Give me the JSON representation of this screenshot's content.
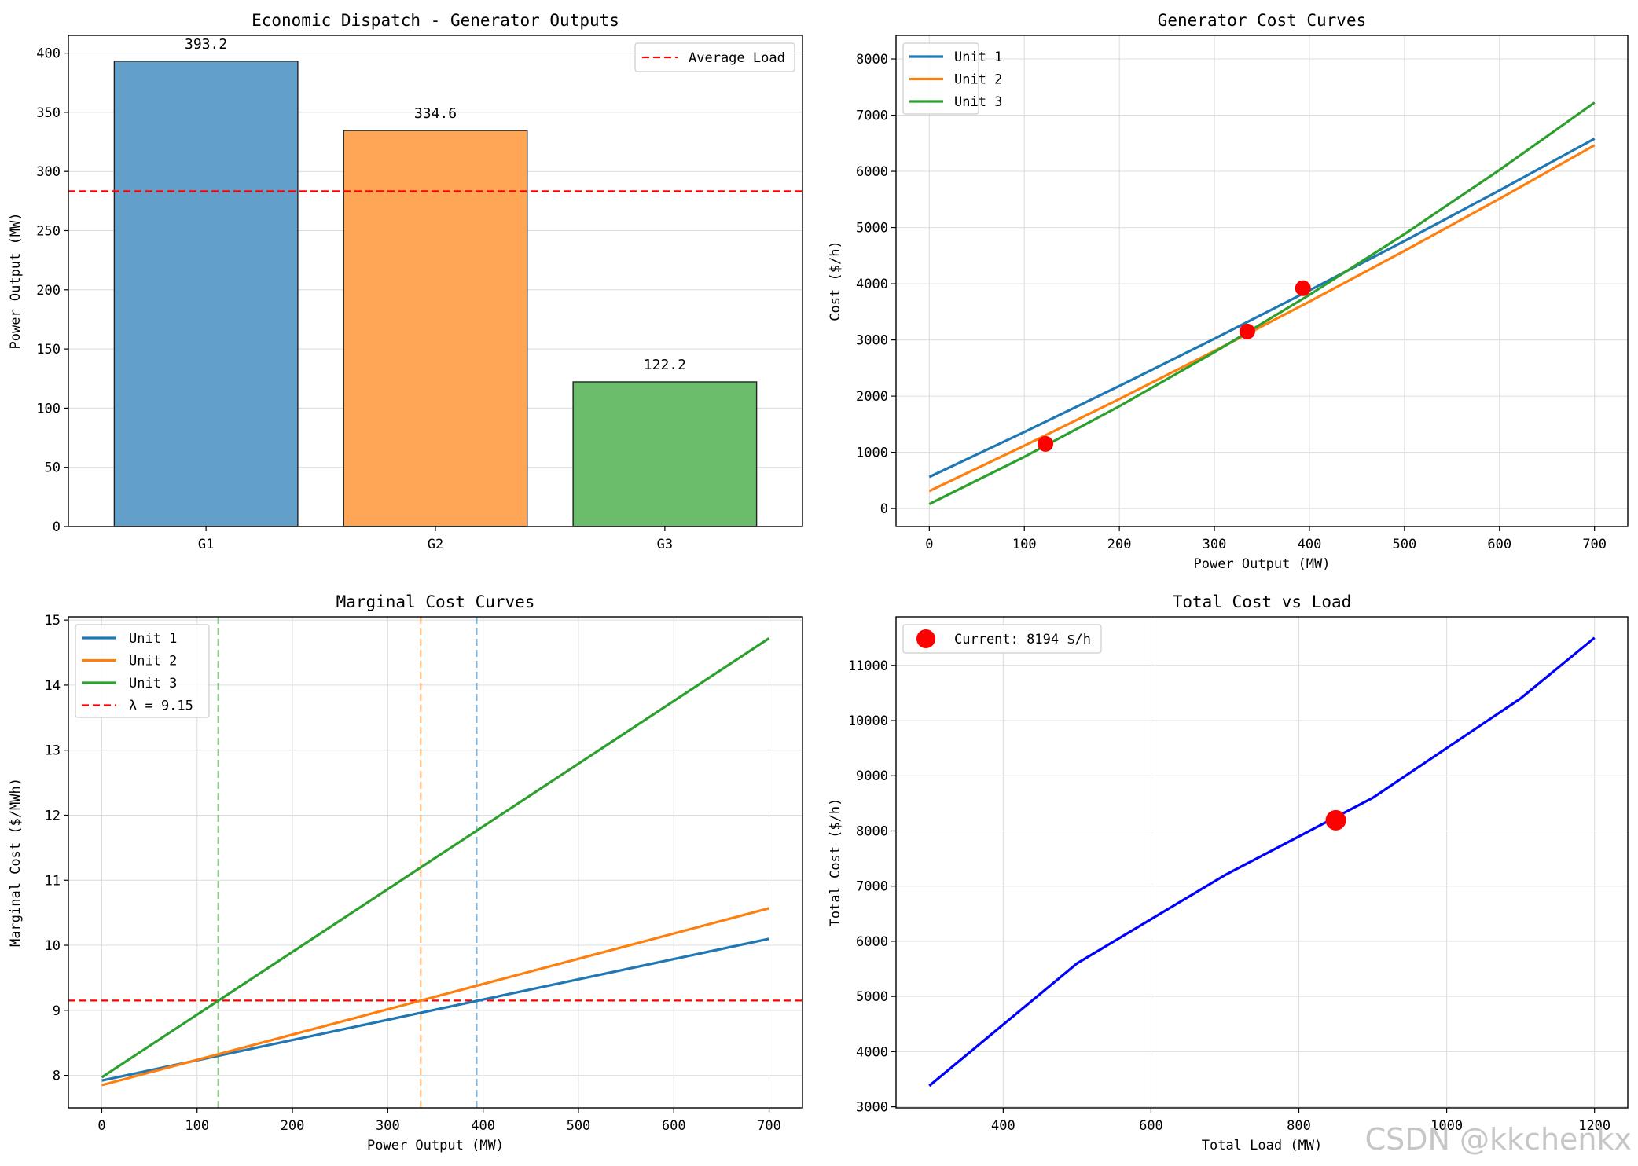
{
  "chart_data": [
    {
      "type": "bar",
      "title": "Economic Dispatch - Generator Outputs",
      "xlabel": "",
      "ylabel": "Power Output (MW)",
      "categories": [
        "G1",
        "G2",
        "G3"
      ],
      "values": [
        393.2,
        334.6,
        122.2
      ],
      "value_labels": [
        "393.2",
        "334.6",
        "122.2"
      ],
      "bar_colors": [
        "#62a0ca",
        "#ffa556",
        "#6bbc6b"
      ],
      "ylim": [
        0,
        415
      ],
      "yticks": [
        0,
        50,
        100,
        150,
        200,
        250,
        300,
        350,
        400
      ],
      "grid": true,
      "reference_line": {
        "label": "Average Load",
        "value": 283.3,
        "color": "#ff0000",
        "style": "dashed"
      },
      "legend": {
        "placement": "top-right",
        "entries": [
          "Average Load"
        ]
      }
    },
    {
      "type": "line",
      "title": "Generator Cost Curves",
      "xlabel": "Power Output (MW)",
      "ylabel": "Cost ($/h)",
      "xlim": [
        -35,
        735
      ],
      "ylim": [
        -320,
        8420
      ],
      "xticks": [
        0,
        100,
        200,
        300,
        400,
        500,
        600,
        700
      ],
      "yticks": [
        0,
        1000,
        2000,
        3000,
        4000,
        5000,
        6000,
        7000,
        8000
      ],
      "grid": true,
      "series": [
        {
          "name": "Unit 1",
          "color": "#1f77b4",
          "x": [
            0,
            100,
            200,
            300,
            400,
            500,
            600,
            700
          ],
          "values": [
            561,
            1361,
            2181,
            3021,
            3881,
            4761,
            5661,
            6581
          ]
        },
        {
          "name": "Unit 2",
          "color": "#ff7f0e",
          "x": [
            0,
            100,
            200,
            300,
            400,
            500,
            600,
            700
          ],
          "values": [
            310,
            1117,
            1948,
            2803,
            3682,
            4585,
            5512,
            6463
          ]
        },
        {
          "name": "Unit 3",
          "color": "#2ca02c",
          "x": [
            0,
            100,
            200,
            300,
            400,
            500,
            600,
            700
          ],
          "values": [
            78,
            919,
            1820,
            2781,
            3802,
            4883,
            6024,
            7225
          ]
        }
      ],
      "operating_points": {
        "color": "#ff0000",
        "x": [
          122.2,
          334.6,
          393.2
        ],
        "values": [
          1150,
          3150,
          3920
        ]
      },
      "legend": {
        "placement": "top-left",
        "entries": [
          "Unit 1",
          "Unit 2",
          "Unit 3"
        ]
      }
    },
    {
      "type": "line",
      "title": "Marginal Cost Curves",
      "xlabel": "Power Output (MW)",
      "ylabel": "Marginal Cost ($/MWh)",
      "xlim": [
        -35,
        735
      ],
      "ylim": [
        7.5,
        15.05
      ],
      "xticks": [
        0,
        100,
        200,
        300,
        400,
        500,
        600,
        700
      ],
      "yticks": [
        8,
        9,
        10,
        11,
        12,
        13,
        14,
        15
      ],
      "grid": true,
      "series": [
        {
          "name": "Unit 1",
          "color": "#1f77b4",
          "x": [
            0,
            700
          ],
          "values": [
            7.92,
            10.1
          ]
        },
        {
          "name": "Unit 2",
          "color": "#ff7f0e",
          "x": [
            0,
            700
          ],
          "values": [
            7.85,
            10.57
          ]
        },
        {
          "name": "Unit 3",
          "color": "#2ca02c",
          "x": [
            0,
            700
          ],
          "values": [
            7.97,
            14.72
          ]
        }
      ],
      "lambda_line": {
        "label": "λ = 9.15",
        "value": 9.15,
        "color": "#ff0000",
        "style": "dashed"
      },
      "vertical_lines": [
        {
          "x": 122.2,
          "color": "#2ca02c"
        },
        {
          "x": 334.6,
          "color": "#ff7f0e"
        },
        {
          "x": 393.2,
          "color": "#1f77b4"
        }
      ],
      "legend": {
        "placement": "top-left",
        "entries": [
          "Unit 1",
          "Unit 2",
          "Unit 3",
          "λ = 9.15"
        ]
      }
    },
    {
      "type": "line",
      "title": "Total Cost vs Load",
      "xlabel": "Total Load (MW)",
      "ylabel": "Total Cost ($/h)",
      "xlim": [
        255,
        1245
      ],
      "ylim": [
        2980,
        11880
      ],
      "xticks": [
        400,
        600,
        800,
        1000,
        1200
      ],
      "yticks": [
        3000,
        4000,
        5000,
        6000,
        7000,
        8000,
        9000,
        10000,
        11000
      ],
      "grid": true,
      "series": [
        {
          "name": "Total Cost",
          "color": "#0000ff",
          "x": [
            300,
            500,
            700,
            900,
            1100,
            1200
          ],
          "values": [
            3380,
            5600,
            7200,
            8600,
            10400,
            11500
          ]
        }
      ],
      "current_point": {
        "label": "Current: 8194 $/h",
        "x": 850,
        "value": 8194,
        "color": "#ff0000"
      },
      "legend": {
        "placement": "top-left",
        "entries": [
          "Current: 8194 $/h"
        ]
      }
    }
  ],
  "watermark": {
    "text": "CSDN @kkchenkx"
  }
}
